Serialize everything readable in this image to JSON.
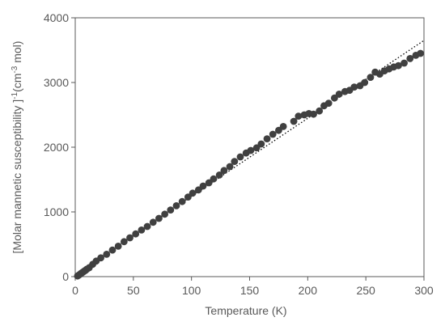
{
  "chart_data": {
    "type": "scatter",
    "title": "",
    "xlabel": "Temperature (K)",
    "ylabel_parts": {
      "prefix": "[Molar mannetic  susceptibility ]",
      "exp1": "-1",
      "middle": "(cm",
      "exp2": "-3",
      "suffix": " mol)"
    },
    "xlim": [
      0,
      300
    ],
    "ylim": [
      0,
      4000
    ],
    "x_ticks": [
      "0",
      "50",
      "100",
      "150",
      "200",
      "250",
      "300"
    ],
    "y_ticks": [
      "0",
      "1000",
      "2000",
      "3000",
      "4000"
    ],
    "grid": false,
    "legend": "none",
    "series": [
      {
        "kind": "markers",
        "color": "#404040",
        "points": [
          [
            2,
            10
          ],
          [
            3,
            22
          ],
          [
            4,
            35
          ],
          [
            5,
            50
          ],
          [
            6,
            62
          ],
          [
            7,
            75
          ],
          [
            8,
            88
          ],
          [
            9,
            100
          ],
          [
            10,
            115
          ],
          [
            12,
            138
          ],
          [
            15,
            190
          ],
          [
            18,
            240
          ],
          [
            22,
            290
          ],
          [
            27,
            345
          ],
          [
            32,
            410
          ],
          [
            37,
            470
          ],
          [
            42,
            540
          ],
          [
            47,
            600
          ],
          [
            52,
            660
          ],
          [
            57,
            720
          ],
          [
            62,
            775
          ],
          [
            67,
            840
          ],
          [
            72,
            900
          ],
          [
            77,
            965
          ],
          [
            82,
            1030
          ],
          [
            87,
            1095
          ],
          [
            92,
            1160
          ],
          [
            97,
            1230
          ],
          [
            101,
            1290
          ],
          [
            106,
            1340
          ],
          [
            110,
            1400
          ],
          [
            115,
            1450
          ],
          [
            119,
            1510
          ],
          [
            124,
            1570
          ],
          [
            128,
            1640
          ],
          [
            133,
            1700
          ],
          [
            137,
            1780
          ],
          [
            142,
            1850
          ],
          [
            147,
            1910
          ],
          [
            151,
            1950
          ],
          [
            156,
            1990
          ],
          [
            160,
            2050
          ],
          [
            165,
            2130
          ],
          [
            170,
            2200
          ],
          [
            175,
            2260
          ],
          [
            179,
            2320
          ],
          [
            188,
            2400
          ],
          [
            192,
            2480
          ],
          [
            197,
            2500
          ],
          [
            201,
            2520
          ],
          [
            205,
            2510
          ],
          [
            210,
            2560
          ],
          [
            214,
            2640
          ],
          [
            218,
            2680
          ],
          [
            223,
            2760
          ],
          [
            227,
            2820
          ],
          [
            232,
            2860
          ],
          [
            236,
            2880
          ],
          [
            240,
            2930
          ],
          [
            245,
            2950
          ],
          [
            249,
            3000
          ],
          [
            254,
            3080
          ],
          [
            258,
            3160
          ],
          [
            262,
            3130
          ],
          [
            266,
            3180
          ],
          [
            270,
            3210
          ],
          [
            274,
            3240
          ],
          [
            278,
            3260
          ],
          [
            283,
            3300
          ],
          [
            288,
            3370
          ],
          [
            293,
            3420
          ],
          [
            297,
            3450
          ]
        ]
      },
      {
        "kind": "dotted-line",
        "color": "#000000",
        "points": [
          [
            0,
            40
          ],
          [
            300,
            3650
          ]
        ]
      }
    ]
  }
}
